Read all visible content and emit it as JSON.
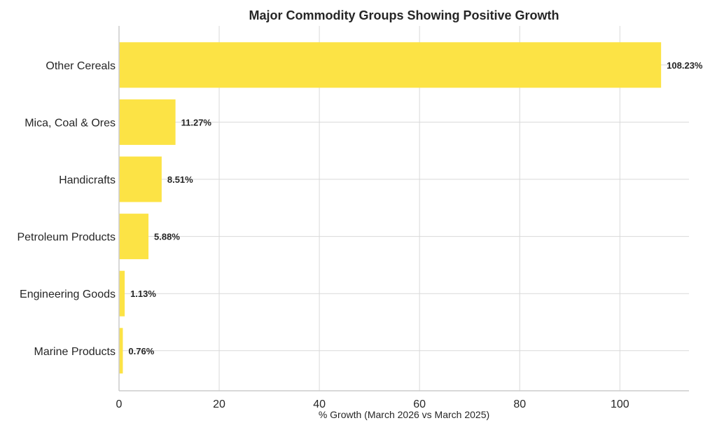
{
  "chart_data": {
    "type": "bar",
    "orientation": "horizontal",
    "title": "Major Commodity Groups Showing Positive Growth",
    "xlabel": "% Growth (March 2026 vs March 2025)",
    "ylabel": "",
    "categories": [
      "Other Cereals",
      "Mica, Coal & Ores",
      "Handicrafts",
      "Petroleum Products",
      "Engineering Goods",
      "Marine Products"
    ],
    "values": [
      108.23,
      11.27,
      8.51,
      5.88,
      1.13,
      0.76
    ],
    "data_labels": [
      "108.23%",
      "11.27%",
      "8.51%",
      "5.88%",
      "1.13%",
      "0.76%"
    ],
    "xlim": [
      0,
      113.8
    ],
    "xticks": [
      0,
      20,
      40,
      60,
      80,
      100
    ],
    "xtick_labels": [
      "0",
      "20",
      "40",
      "60",
      "80",
      "100"
    ],
    "grid": true,
    "legend": "none",
    "bar_color": "#FCE345"
  }
}
